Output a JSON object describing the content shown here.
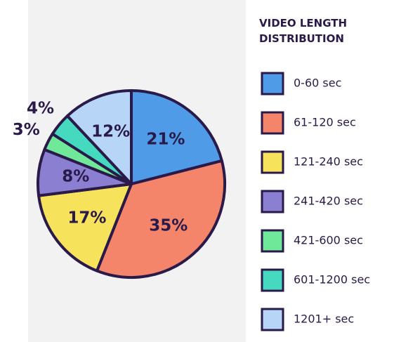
{
  "chart_data": {
    "type": "pie",
    "title": "VIDEO LENGTH DISTRIBUTION",
    "categories": [
      "0-60 sec",
      "61-120 sec",
      "121-240 sec",
      "241-420 sec",
      "421-600 sec",
      "601-1200 sec",
      "1201+ sec"
    ],
    "values": [
      21,
      35,
      17,
      8,
      3,
      4,
      12
    ],
    "value_labels": [
      "21%",
      "35%",
      "17%",
      "8%",
      "3%",
      "4%",
      "12%"
    ],
    "colors": [
      "#4f9be8",
      "#f4846a",
      "#f7e25c",
      "#8a7fd0",
      "#6fe89a",
      "#45d9c0",
      "#b6d5f7"
    ],
    "legend": "right"
  }
}
